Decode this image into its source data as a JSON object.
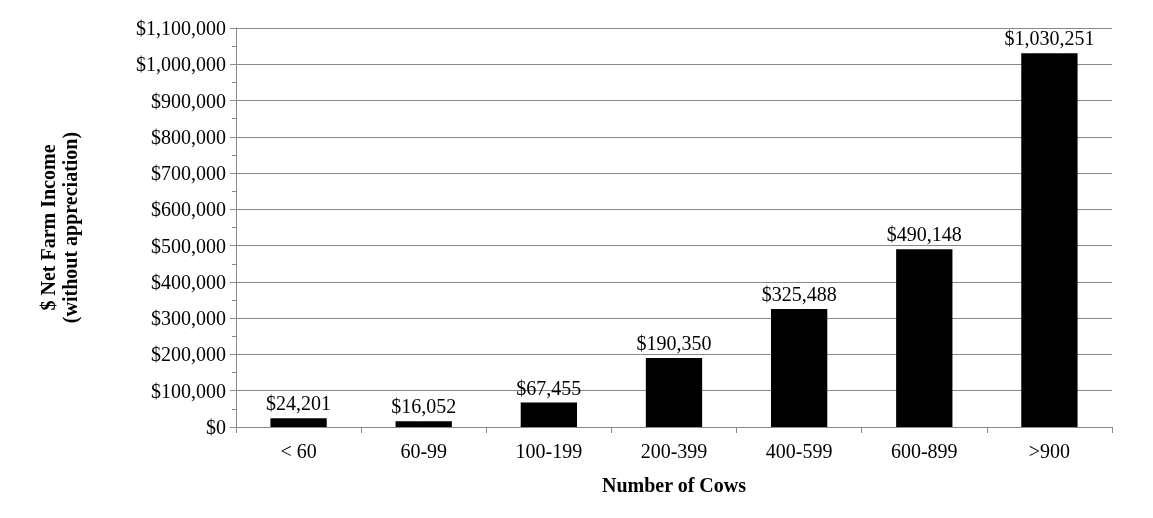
{
  "chart_data": {
    "type": "bar",
    "xlabel": "Number of Cows",
    "ylabel": "$ Net Farm Income\n(without appreciation)",
    "categories": [
      "< 60",
      "60-99",
      "100-199",
      "200-399",
      "400-599",
      "600-899",
      ">900"
    ],
    "values": [
      24201,
      16052,
      67455,
      190350,
      325488,
      490148,
      1030251
    ],
    "value_labels": [
      "$24,201",
      "$16,052",
      "$67,455",
      "$190,350",
      "$325,488",
      "$490,148",
      "$1,030,251"
    ],
    "color": "#000000",
    "ylim": [
      0,
      1100000
    ],
    "yticks": [
      {
        "value": 0,
        "label": "$0"
      },
      {
        "value": 50000,
        "label": null
      },
      {
        "value": 100000,
        "label": "$100,000"
      },
      {
        "value": 150000,
        "label": null
      },
      {
        "value": 200000,
        "label": "$200,000"
      },
      {
        "value": 250000,
        "label": null
      },
      {
        "value": 300000,
        "label": "$300,000"
      },
      {
        "value": 350000,
        "label": null
      },
      {
        "value": 400000,
        "label": "$400,000"
      },
      {
        "value": 450000,
        "label": null
      },
      {
        "value": 500000,
        "label": "$500,000"
      },
      {
        "value": 550000,
        "label": null
      },
      {
        "value": 600000,
        "label": "$600,000"
      },
      {
        "value": 650000,
        "label": null
      },
      {
        "value": 700000,
        "label": "$700,000"
      },
      {
        "value": 750000,
        "label": null
      },
      {
        "value": 800000,
        "label": "$800,000"
      },
      {
        "value": 850000,
        "label": null
      },
      {
        "value": 900000,
        "label": "$900,000"
      },
      {
        "value": 950000,
        "label": null
      },
      {
        "value": 1000000,
        "label": "$1,000,000"
      },
      {
        "value": 1050000,
        "label": null
      },
      {
        "value": 1100000,
        "label": "$1,100,000"
      }
    ],
    "grid": "y"
  }
}
